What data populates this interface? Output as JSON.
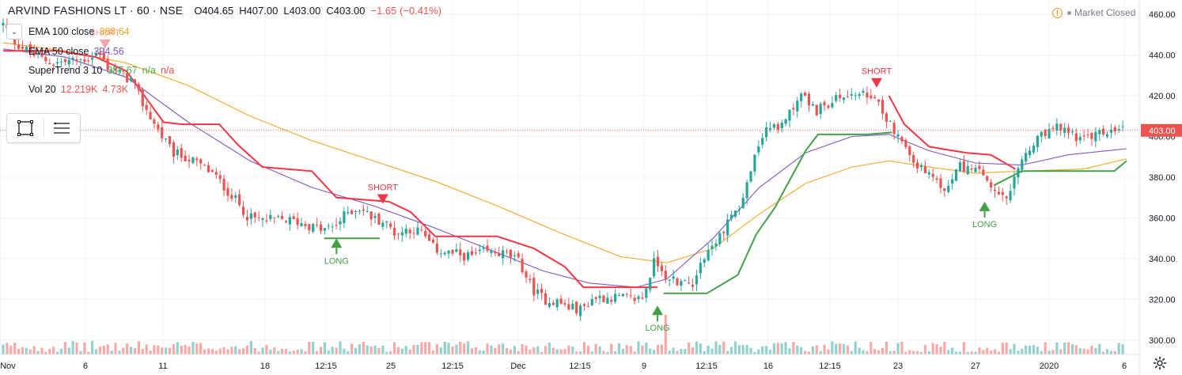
{
  "header": {
    "symbol": "ARVIND FASHIONS LT · 60 · NSE",
    "open": "O404.65",
    "high": "H407.00",
    "low": "L403.00",
    "close": "C403.00",
    "change": "−1.65 (−0.41%)"
  },
  "legend": {
    "ema100": {
      "label": "EMA 100 close",
      "value": "388.64",
      "color": "#f5a623"
    },
    "ema50": {
      "label": "EMA 50 close",
      "value": "394.56",
      "color": "#7e57c2"
    },
    "supertrend": {
      "label": "SuperTrend 3 10",
      "value": "387.67",
      "v2": "n/a",
      "v3": "n/a",
      "color": "#4caf50"
    },
    "volume": {
      "label": "Vol 20",
      "value": "12.219K",
      "v2": "4.73K",
      "color": "#ef5350"
    }
  },
  "toolbar": {
    "icons": [
      "rectangle-select-icon",
      "list-menu-icon"
    ]
  },
  "status": {
    "text": "Market Closed",
    "icon": "warning-icon"
  },
  "colors": {
    "up": "#26a69a",
    "down": "#ef5350",
    "grid": "#f0f3fa",
    "st_bear": "#f23645",
    "st_bull": "#43a047",
    "current_price": "#ef5350"
  },
  "chart_data": {
    "type": "candlestick",
    "yaxis": {
      "ticks": [
        "460.00",
        "440.00",
        "420.00",
        "400.00",
        "380.00",
        "360.00",
        "340.00",
        "320.00",
        "300.00"
      ],
      "range": [
        296,
        464
      ],
      "current_price": "403.00",
      "current_value": 403.0
    },
    "xaxis": {
      "ticks": [
        "Nov",
        "6",
        "11",
        "18",
        "12:15",
        "25",
        "12:15",
        "Dec",
        "12:15",
        "9",
        "12:15",
        "16",
        "12:15",
        "23",
        "27",
        "2020",
        "6"
      ]
    },
    "candle_count": 290,
    "close_path": [
      [
        0,
        455
      ],
      [
        4,
        446
      ],
      [
        10,
        440
      ],
      [
        16,
        436
      ],
      [
        22,
        437
      ],
      [
        27,
        438
      ],
      [
        31,
        441
      ],
      [
        34,
        434
      ],
      [
        38,
        431
      ],
      [
        42,
        427
      ],
      [
        45,
        417
      ],
      [
        50,
        404
      ],
      [
        55,
        392
      ],
      [
        59,
        390
      ],
      [
        64,
        386
      ],
      [
        68,
        382
      ],
      [
        72,
        375
      ],
      [
        76,
        368
      ],
      [
        80,
        360
      ],
      [
        84,
        359
      ],
      [
        88,
        359
      ],
      [
        92,
        359
      ],
      [
        96,
        358
      ],
      [
        100,
        356
      ],
      [
        104,
        354
      ],
      [
        108,
        356
      ],
      [
        112,
        363
      ],
      [
        116,
        365
      ],
      [
        120,
        360
      ],
      [
        124,
        358
      ],
      [
        128,
        352
      ],
      [
        132,
        355
      ],
      [
        136,
        353
      ],
      [
        140,
        345
      ],
      [
        144,
        343
      ],
      [
        148,
        342
      ],
      [
        152,
        341
      ],
      [
        156,
        343
      ],
      [
        160,
        343
      ],
      [
        164,
        342
      ],
      [
        168,
        338
      ],
      [
        172,
        325
      ],
      [
        176,
        320
      ],
      [
        180,
        319
      ],
      [
        184,
        316
      ],
      [
        188,
        315
      ],
      [
        192,
        321
      ],
      [
        196,
        321
      ],
      [
        200,
        321
      ],
      [
        204,
        320
      ],
      [
        208,
        321
      ],
      [
        212,
        340
      ],
      [
        216,
        331
      ],
      [
        220,
        329
      ],
      [
        224,
        328
      ],
      [
        228,
        342
      ],
      [
        232,
        348
      ],
      [
        236,
        360
      ],
      [
        240,
        367
      ],
      [
        244,
        388
      ],
      [
        248,
        405
      ],
      [
        252,
        403
      ],
      [
        256,
        414
      ],
      [
        260,
        421
      ],
      [
        264,
        412
      ],
      [
        268,
        416
      ],
      [
        272,
        419
      ],
      [
        276,
        421
      ],
      [
        280,
        420
      ],
      [
        283,
        418
      ],
      [
        287,
        410
      ],
      [
        291,
        400
      ],
      [
        295,
        390
      ],
      [
        299,
        383
      ],
      [
        303,
        377
      ],
      [
        307,
        374
      ],
      [
        311,
        386
      ],
      [
        315,
        383
      ],
      [
        319,
        381
      ],
      [
        323,
        370
      ],
      [
        327,
        370
      ],
      [
        331,
        388
      ],
      [
        335,
        396
      ],
      [
        339,
        402
      ],
      [
        343,
        404
      ],
      [
        347,
        402
      ],
      [
        351,
        398
      ],
      [
        355,
        401
      ],
      [
        359,
        402
      ],
      [
        364,
        403
      ]
    ],
    "ema100_path": [
      [
        0,
        446
      ],
      [
        20,
        442
      ],
      [
        40,
        436
      ],
      [
        60,
        425
      ],
      [
        80,
        410
      ],
      [
        100,
        398
      ],
      [
        120,
        388
      ],
      [
        140,
        378
      ],
      [
        160,
        366
      ],
      [
        180,
        353
      ],
      [
        200,
        341
      ],
      [
        215,
        338
      ],
      [
        230,
        345
      ],
      [
        245,
        362
      ],
      [
        260,
        377
      ],
      [
        275,
        385
      ],
      [
        287,
        388
      ],
      [
        300,
        385
      ],
      [
        315,
        382
      ],
      [
        330,
        383
      ],
      [
        350,
        384
      ],
      [
        364,
        389
      ]
    ],
    "ema50_path": [
      [
        0,
        443
      ],
      [
        20,
        439
      ],
      [
        40,
        429
      ],
      [
        60,
        407
      ],
      [
        80,
        388
      ],
      [
        100,
        375
      ],
      [
        120,
        366
      ],
      [
        140,
        355
      ],
      [
        160,
        343
      ],
      [
        175,
        334
      ],
      [
        190,
        328
      ],
      [
        205,
        326
      ],
      [
        215,
        330
      ],
      [
        230,
        350
      ],
      [
        245,
        375
      ],
      [
        260,
        392
      ],
      [
        275,
        400
      ],
      [
        287,
        401
      ],
      [
        300,
        393
      ],
      [
        315,
        387
      ],
      [
        330,
        386
      ],
      [
        345,
        391
      ],
      [
        364,
        394
      ]
    ],
    "supertrend_segments": [
      {
        "trend": "bear",
        "points": [
          [
            0,
            442
          ],
          [
            18,
            442
          ],
          [
            30,
            439
          ],
          [
            40,
            432
          ],
          [
            52,
            407
          ],
          [
            58,
            406
          ],
          [
            70,
            406
          ],
          [
            76,
            396
          ],
          [
            84,
            385
          ],
          [
            100,
            383
          ],
          [
            108,
            370
          ],
          [
            125,
            368
          ],
          [
            132,
            363
          ],
          [
            140,
            351
          ],
          [
            160,
            351
          ],
          [
            172,
            345
          ],
          [
            182,
            336
          ],
          [
            188,
            326
          ],
          [
            212,
            326
          ]
        ]
      },
      {
        "trend": "bull",
        "points": [
          [
            104,
            350
          ],
          [
            122,
            350
          ]
        ]
      },
      {
        "trend": "bull",
        "points": [
          [
            214,
            323
          ],
          [
            228,
            323
          ],
          [
            238,
            332
          ],
          [
            244,
            352
          ],
          [
            250,
            365
          ],
          [
            260,
            393
          ],
          [
            264,
            401
          ],
          [
            280,
            401
          ],
          [
            288,
            402
          ]
        ]
      },
      {
        "trend": "bear",
        "points": [
          [
            287,
            420
          ],
          [
            292,
            406
          ],
          [
            300,
            395
          ],
          [
            312,
            392
          ],
          [
            320,
            391
          ],
          [
            328,
            384
          ]
        ]
      },
      {
        "trend": "bull",
        "points": [
          [
            321,
            376
          ],
          [
            330,
            383
          ],
          [
            360,
            383
          ],
          [
            364,
            388
          ]
        ]
      }
    ],
    "volume_spikes": [
      [
        75,
        37
      ],
      [
        215,
        25
      ],
      [
        245,
        35
      ]
    ],
    "signals": [
      {
        "type": "short",
        "label": "SHORT",
        "index": 123,
        "price": 367
      },
      {
        "type": "long",
        "label": "LONG",
        "index": 108,
        "price": 350
      },
      {
        "type": "long",
        "label": "LONG",
        "index": 212,
        "price": 317
      },
      {
        "type": "short",
        "label": "SHORT",
        "index": 283,
        "price": 424
      },
      {
        "type": "long",
        "label": "LONG",
        "index": 318,
        "price": 368
      },
      {
        "type": "short",
        "label": "SHORT",
        "index": 33,
        "price": 443
      }
    ]
  }
}
